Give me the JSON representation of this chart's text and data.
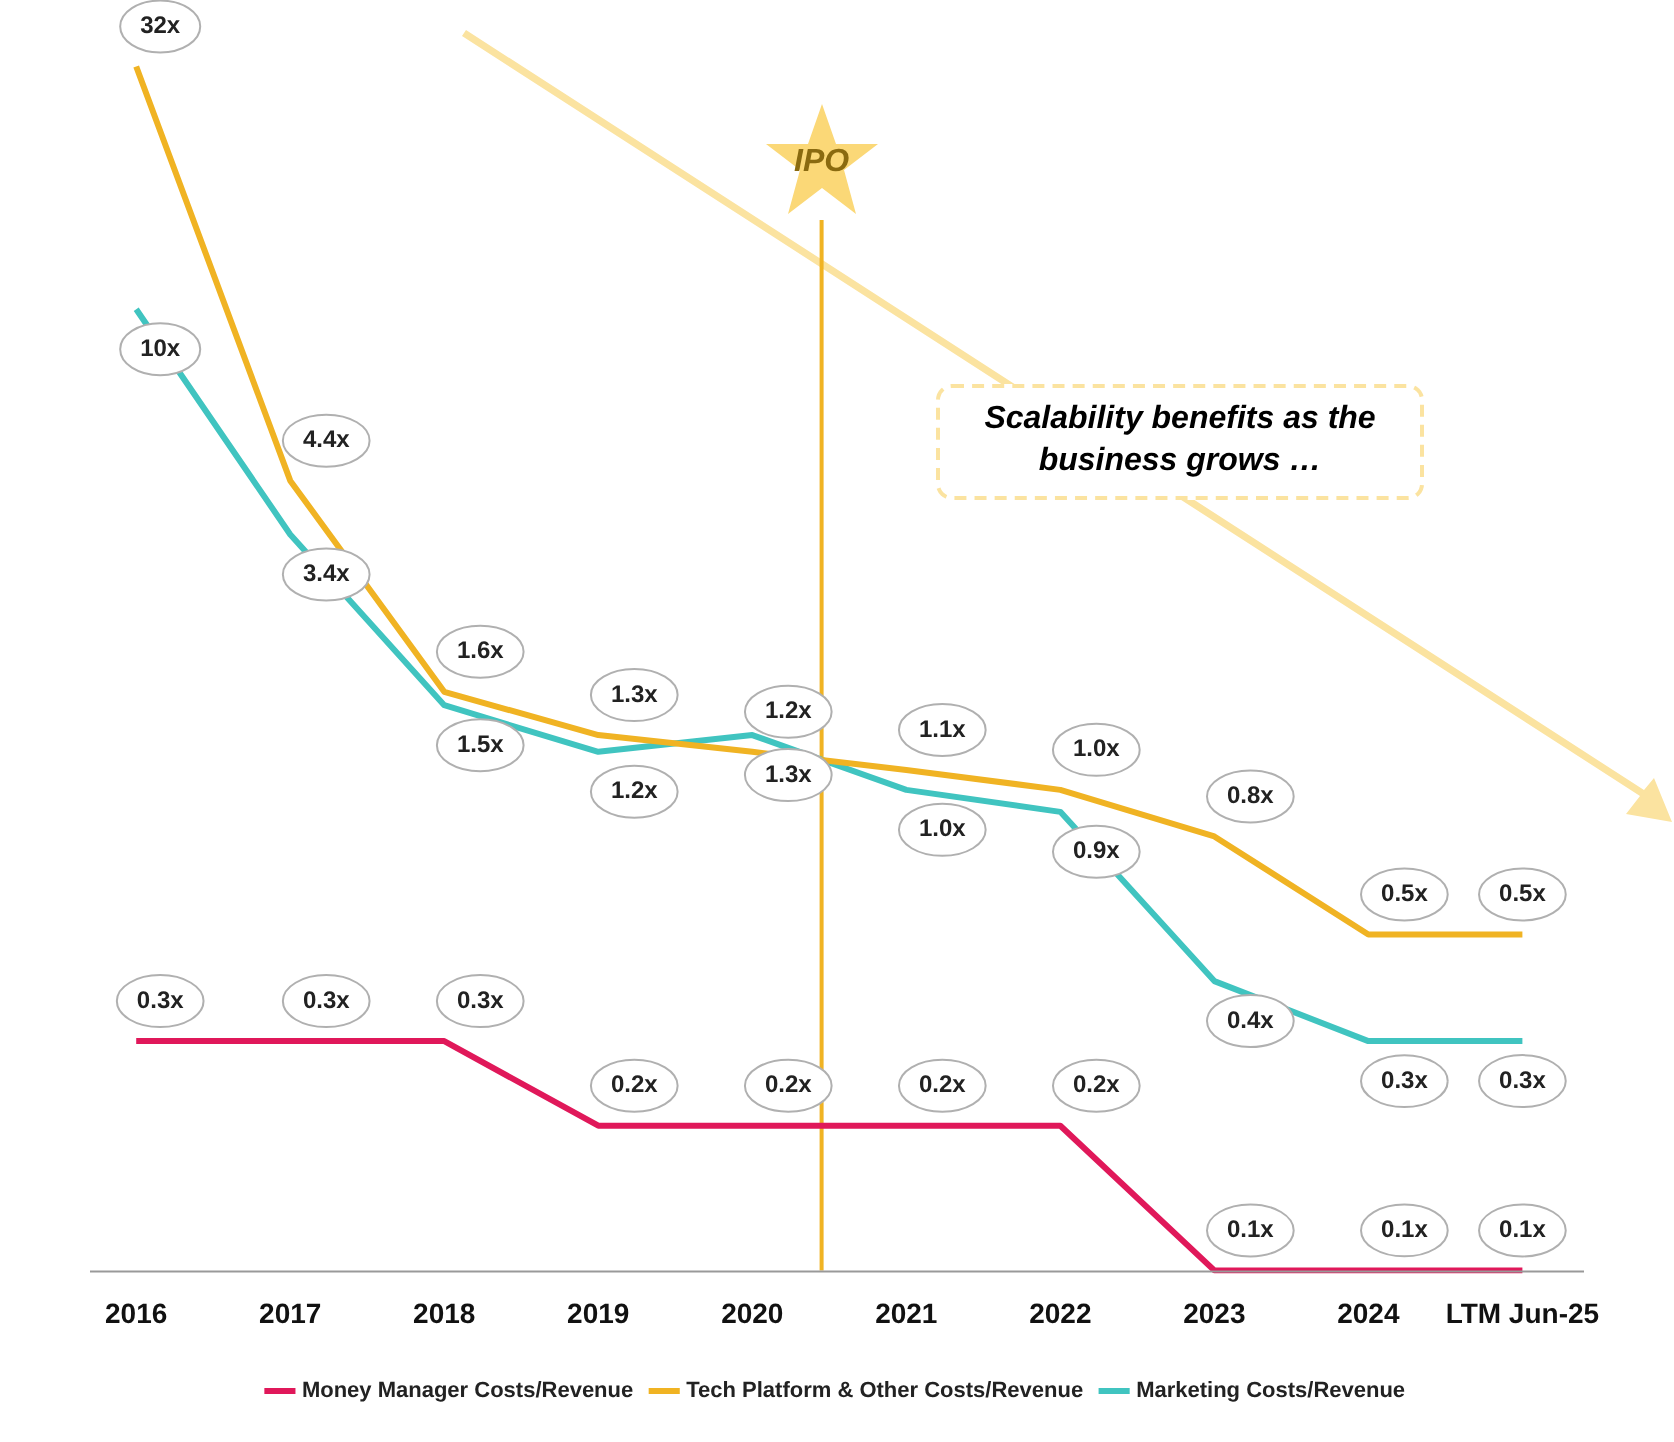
{
  "chart_data": {
    "type": "line",
    "x": [
      2016,
      2017,
      2018,
      2019,
      2020,
      2021,
      2022,
      2023,
      2024,
      2025
    ],
    "xlim": [
      2015.7,
      2025.4
    ],
    "xticks": [
      2016,
      2017,
      2018,
      2019,
      2020,
      2021,
      2022,
      2023,
      2024,
      {
        "value": 2025,
        "label": "LTM Jun-25"
      }
    ],
    "log": true,
    "tick_labels": "x",
    "grid": false,
    "marker": "none",
    "line_style": "solid",
    "legend": "bottom",
    "series": [
      {
        "name": "Money Manager Costs/Revenue",
        "color": "#e0185a",
        "values": [
          0.3,
          0.3,
          0.3,
          0.2,
          0.2,
          0.2,
          0.2,
          0.1,
          0.1,
          0.1
        ],
        "value_labels": [
          "0.3x",
          "0.3x",
          "0.3x",
          "0.2x",
          "0.2x",
          "0.2x",
          "0.2x",
          "0.1x",
          "0.1x",
          "0.1x"
        ]
      },
      {
        "name": "Tech Platform & Other Costs/Revenue",
        "color": "#f0b323",
        "values": [
          32,
          4.4,
          1.6,
          1.3,
          1.2,
          1.1,
          1.0,
          0.8,
          0.5,
          0.5
        ],
        "value_labels": [
          "32x",
          "4.4x",
          "1.6x",
          "1.3x",
          "1.2x",
          "1.1x",
          "1.0x",
          "0.8x",
          "0.5x",
          "0.5x"
        ]
      },
      {
        "name": "Marketing Costs/Revenue",
        "color": "#40c4c0",
        "values": [
          10,
          3.4,
          1.5,
          1.2,
          1.3,
          1.0,
          0.9,
          0.4,
          0.3,
          0.3
        ],
        "value_labels": [
          "10x",
          "3.4x",
          "1.5x",
          "1.2x",
          "1.3x",
          "1.0x",
          "0.9x",
          "0.4x",
          "0.3x",
          "0.3x"
        ]
      }
    ],
    "ref_lines": [
      {
        "axis": "x",
        "value": 2020.45,
        "label": "IPO",
        "color": "#f0b323"
      }
    ],
    "annotations": [
      "Scalability benefits as the business grows …"
    ]
  }
}
